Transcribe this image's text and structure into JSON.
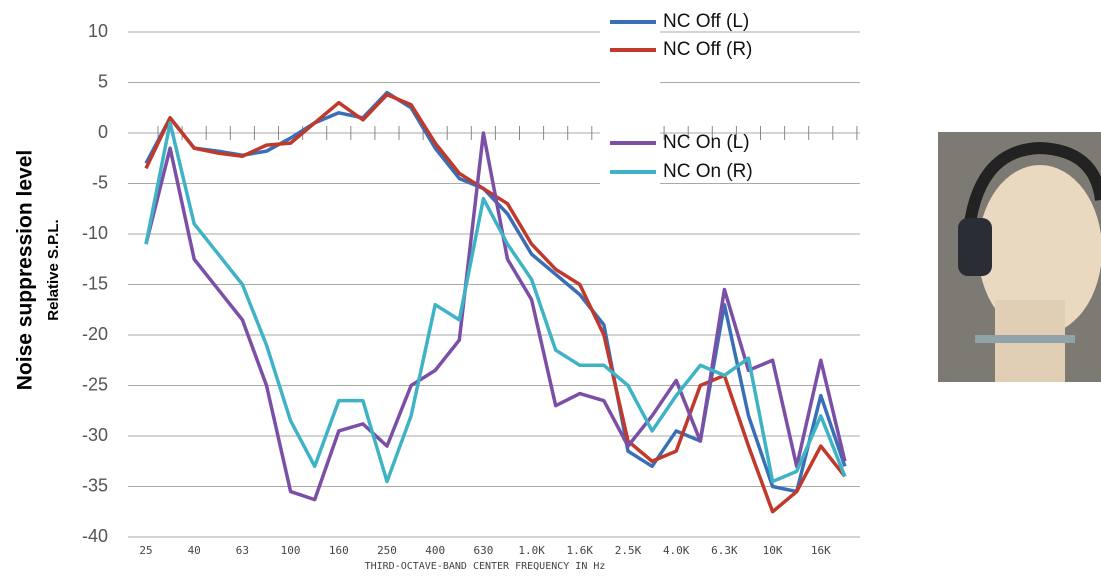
{
  "chart_data": {
    "type": "line",
    "y_label": "Noise suppression level",
    "y_label_sub": "Relative S.P.L.",
    "x_label": "THIRD-OCTAVE-BAND CENTER FREQUENCY IN Hz",
    "categories": [
      "25",
      null,
      "40",
      null,
      "63",
      null,
      "100",
      null,
      "160",
      null,
      "250",
      null,
      "400",
      null,
      "630",
      null,
      "1.0K",
      null,
      "1.6K",
      null,
      "2.5K",
      null,
      "4.0K",
      null,
      "6.3K",
      null,
      "10K",
      null,
      "16K",
      null
    ],
    "ylim": [
      -40,
      10
    ],
    "yticks": [
      10,
      5,
      0,
      -5,
      -10,
      -15,
      -20,
      -25,
      -30,
      -35,
      -40
    ],
    "grid": true,
    "series": [
      {
        "name": "NC Off (L)",
        "color": "#3a6fb5",
        "values": [
          -3,
          1.5,
          -1.5,
          -1.8,
          -2.2,
          -1.8,
          -0.5,
          1,
          2,
          1.5,
          4,
          2.5,
          -1.5,
          -4.5,
          -5.5,
          -8,
          -12,
          -14,
          -16,
          -19,
          -31.5,
          -33,
          -29.5,
          -30.5,
          -17,
          -28,
          -35,
          -35.5,
          -26,
          -33
        ]
      },
      {
        "name": "NC Off (R)",
        "color": "#c0392b",
        "values": [
          -3.5,
          1.5,
          -1.5,
          -2,
          -2.3,
          -1.2,
          -1,
          1,
          3,
          1.3,
          3.8,
          2.8,
          -1,
          -4,
          -5.5,
          -7,
          -11,
          -13.5,
          -15,
          -20,
          -30.5,
          -32.5,
          -31.5,
          -25,
          -24,
          -31,
          -37.5,
          -35.5,
          -31,
          -34
        ]
      },
      {
        "name": "NC On (L)",
        "color": "#7b4fa6",
        "values": [
          -11,
          -1.5,
          -12.5,
          -15.5,
          -18.5,
          -25,
          -35.5,
          -36.3,
          -29.5,
          -28.8,
          -31,
          -25,
          -23.5,
          -20.5,
          0,
          -12.5,
          -16.5,
          -27,
          -25.8,
          -26.5,
          -31,
          -28,
          -24.5,
          -30.5,
          -15.5,
          -23.5,
          -22.5,
          -33,
          -22.5,
          -32.5
        ]
      },
      {
        "name": "NC On (R)",
        "color": "#3fb3c6",
        "values": [
          -11,
          1,
          -9,
          -12,
          -15,
          -21,
          -28.5,
          -33,
          -26.5,
          -26.5,
          -34.5,
          -28,
          -17,
          -18.5,
          -6.5,
          -11,
          -14.5,
          -21.5,
          -23,
          -23,
          -25,
          -29.5,
          -26,
          -23,
          -24,
          -22.3,
          -34.5,
          -33.5,
          -28,
          -34
        ]
      }
    ]
  }
}
